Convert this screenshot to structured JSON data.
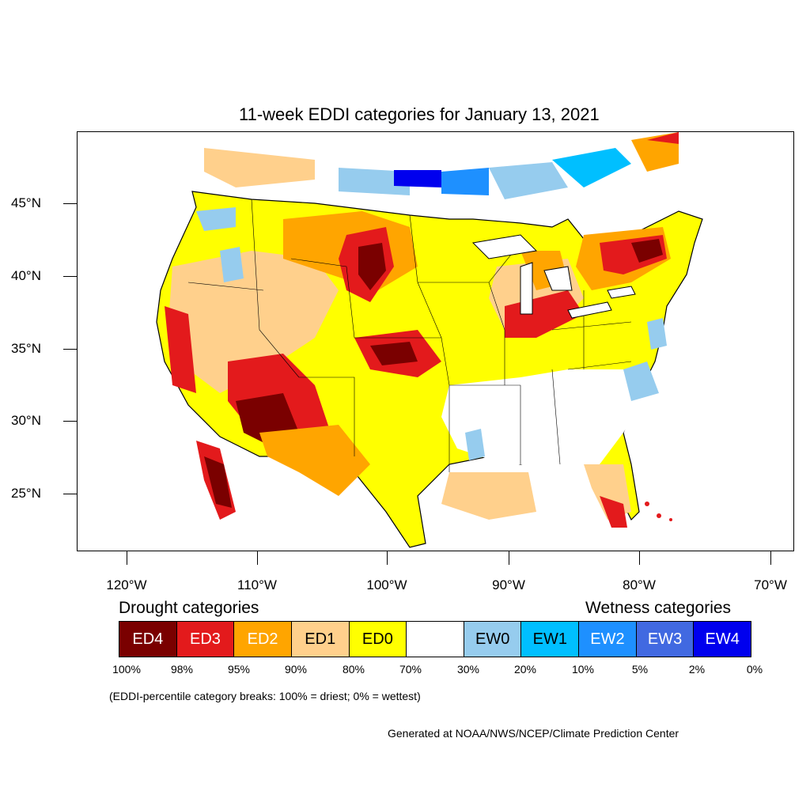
{
  "title": "11-week EDDI categories for January 13, 2021",
  "lat_labels": [
    "45°N",
    "40°N",
    "35°N",
    "30°N",
    "25°N"
  ],
  "lon_labels": [
    "120°W",
    "110°W",
    "100°W",
    "90°W",
    "80°W",
    "70°W"
  ],
  "drought_heading": "Drought categories",
  "wetness_heading": "Wetness categories",
  "legend": [
    {
      "label": "ED4",
      "color": "#7a0000",
      "text_color": "#ffffff"
    },
    {
      "label": "ED3",
      "color": "#e31a1c",
      "text_color": "#ffffff"
    },
    {
      "label": "ED2",
      "color": "#ffa500",
      "text_color": "#ffffff"
    },
    {
      "label": "ED1",
      "color": "#ffd08c",
      "text_color": "#000000"
    },
    {
      "label": "ED0",
      "color": "#ffff00",
      "text_color": "#000000"
    },
    {
      "label": "",
      "color": "#ffffff",
      "text_color": "#000000"
    },
    {
      "label": "EW0",
      "color": "#96ccee",
      "text_color": "#000000"
    },
    {
      "label": "EW1",
      "color": "#00bfff",
      "text_color": "#000000"
    },
    {
      "label": "EW2",
      "color": "#1e90ff",
      "text_color": "#ffffff"
    },
    {
      "label": "EW3",
      "color": "#4169e1",
      "text_color": "#ffffff"
    },
    {
      "label": "EW4",
      "color": "#0000ee",
      "text_color": "#ffffff"
    }
  ],
  "percentiles": [
    "100%",
    "98%",
    "95%",
    "90%",
    "80%",
    "70%",
    "30%",
    "20%",
    "10%",
    "5%",
    "2%",
    "0%"
  ],
  "note": "(EDDI-percentile category breaks: 100% = driest; 0% = wettest)",
  "credit": "Generated at NOAA/NWS/NCEP/Climate Prediction Center"
}
